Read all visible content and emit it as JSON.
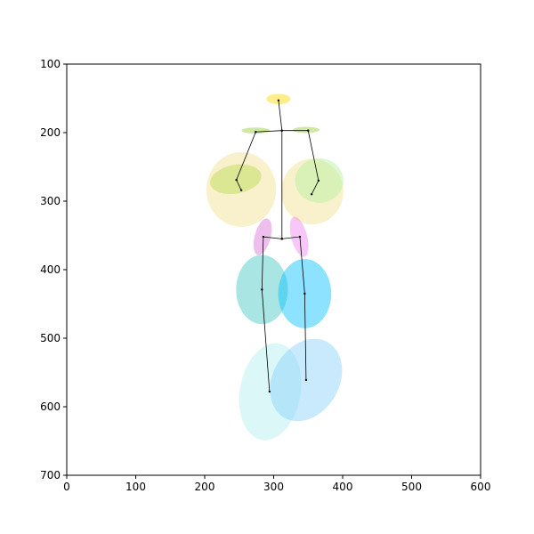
{
  "chart_data": {
    "type": "scatter",
    "xlim": [
      0,
      600
    ],
    "ylim": [
      700,
      100
    ],
    "xticks": [
      0,
      100,
      200,
      300,
      400,
      500,
      600
    ],
    "yticks": [
      100,
      200,
      300,
      400,
      500,
      600,
      700
    ],
    "ellipses": [
      {
        "cx": 253,
        "cy": 283,
        "width": 101,
        "height": 109,
        "angle": 0,
        "color": "#f0e08c"
      },
      {
        "cx": 356,
        "cy": 286,
        "width": 90,
        "height": 96,
        "angle": 0,
        "color": "#f0e08c"
      },
      {
        "cx": 366,
        "cy": 270,
        "width": 70,
        "height": 65,
        "angle": 0,
        "color": "#b4f0a0"
      },
      {
        "cx": 245,
        "cy": 268,
        "width": 75,
        "height": 42,
        "angle": -10,
        "color": "#b8dc50"
      },
      {
        "cx": 307,
        "cy": 151,
        "width": 35,
        "height": 15,
        "angle": 0,
        "color": "#ffd700"
      },
      {
        "cx": 274,
        "cy": 197,
        "width": 41,
        "height": 9,
        "angle": 0,
        "color": "#9acd32"
      },
      {
        "cx": 347,
        "cy": 196,
        "width": 39,
        "height": 9,
        "angle": 0,
        "color": "#9acd32"
      },
      {
        "cx": 284,
        "cy": 352,
        "width": 23,
        "height": 55,
        "angle": 15,
        "color": "#da70d6"
      },
      {
        "cx": 337,
        "cy": 352,
        "width": 23,
        "height": 60,
        "angle": -15,
        "color": "#ee82ee"
      },
      {
        "cx": 283,
        "cy": 429,
        "width": 75,
        "height": 101,
        "angle": 0,
        "color": "#40c8c0"
      },
      {
        "cx": 345,
        "cy": 435,
        "width": 77,
        "height": 101,
        "angle": 0,
        "color": "#00bfff"
      },
      {
        "cx": 295,
        "cy": 578,
        "width": 88,
        "height": 143,
        "angle": 10,
        "color": "#afeeee"
      },
      {
        "cx": 347,
        "cy": 561,
        "width": 96,
        "height": 127,
        "angle": 30,
        "color": "#87cefa"
      }
    ],
    "skeleton": {
      "color": "#000000",
      "x": [
        307,
        312,
        312,
        null,
        253,
        246,
        274,
        312,
        350,
        365,
        355,
        null,
        294,
        283,
        285,
        312,
        338,
        345,
        347
      ],
      "y": [
        153,
        197,
        355,
        null,
        284,
        269,
        199,
        197,
        197,
        270,
        290,
        null,
        578,
        429,
        352,
        355,
        352,
        435,
        561
      ]
    }
  }
}
